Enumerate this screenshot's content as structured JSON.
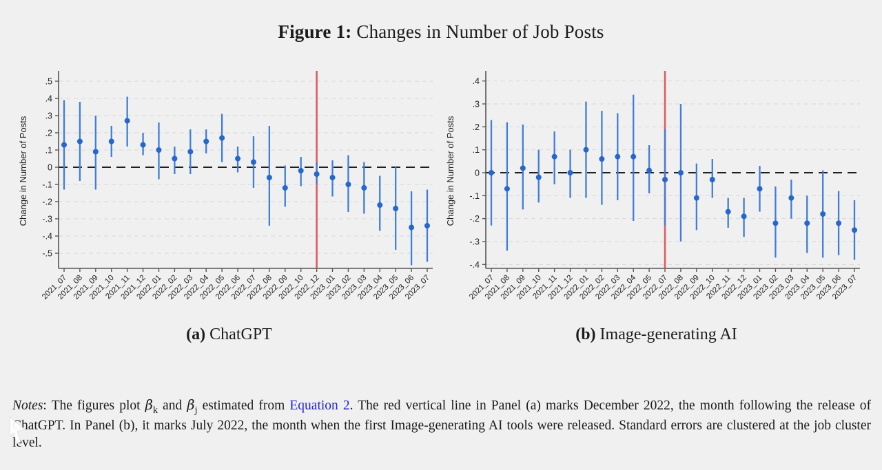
{
  "title": {
    "prefix": "Figure 1:",
    "rest": " Changes in Number of Job Posts"
  },
  "colors": {
    "background": "#f0f0f1",
    "marker": "#2667cb",
    "ci_line": "#3f7ed8",
    "event_line": "#df5b5c",
    "zero_line": "#1f1f1f",
    "grid": "#d9d9d9",
    "axis": "#565656",
    "tick_text": "#222222",
    "link": "#2525cd"
  },
  "chart_data": [
    {
      "type": "scatter",
      "subtype": "coefficient-errorbar",
      "panel": "a",
      "caption_tag": "(a)",
      "caption_label": "ChatGPT",
      "ylabel": "Change in Number of Posts",
      "yticks": [
        ".5",
        ".4",
        ".3",
        ".2",
        ".1",
        "0",
        "-.1",
        "-.2",
        "-.3",
        "-.4",
        "-.5"
      ],
      "ylim": [
        -0.588,
        0.544
      ],
      "zero_line": true,
      "grid": true,
      "event_line_month": "2022_12",
      "event_line_meaning": "December 2022, month following ChatGPT release",
      "categories": [
        "2021_07",
        "2021_08",
        "2021_09",
        "2021_10",
        "2021_11",
        "2021_12",
        "2022_01",
        "2022_02",
        "2022_03",
        "2022_04",
        "2022_05",
        "2022_06",
        "2022_07",
        "2022_08",
        "2022_09",
        "2022_10",
        "2022_12",
        "2023_01",
        "2023_02",
        "2023_03",
        "2023_04",
        "2023_05",
        "2023_06",
        "2023_07"
      ],
      "points": [
        {
          "month": "2021_07",
          "beta": 0.13,
          "lo": -0.13,
          "hi": 0.39
        },
        {
          "month": "2021_08",
          "beta": 0.15,
          "lo": -0.08,
          "hi": 0.38
        },
        {
          "month": "2021_09",
          "beta": 0.09,
          "lo": -0.13,
          "hi": 0.3
        },
        {
          "month": "2021_10",
          "beta": 0.15,
          "lo": 0.06,
          "hi": 0.24
        },
        {
          "month": "2021_11",
          "beta": 0.27,
          "lo": 0.12,
          "hi": 0.41
        },
        {
          "month": "2021_12",
          "beta": 0.13,
          "lo": 0.07,
          "hi": 0.2
        },
        {
          "month": "2022_01",
          "beta": 0.1,
          "lo": -0.07,
          "hi": 0.26
        },
        {
          "month": "2022_02",
          "beta": 0.05,
          "lo": -0.04,
          "hi": 0.12
        },
        {
          "month": "2022_03",
          "beta": 0.09,
          "lo": -0.04,
          "hi": 0.22
        },
        {
          "month": "2022_04",
          "beta": 0.15,
          "lo": 0.08,
          "hi": 0.22
        },
        {
          "month": "2022_05",
          "beta": 0.17,
          "lo": 0.03,
          "hi": 0.31
        },
        {
          "month": "2022_06",
          "beta": 0.05,
          "lo": -0.03,
          "hi": 0.12
        },
        {
          "month": "2022_07",
          "beta": 0.03,
          "lo": -0.12,
          "hi": 0.18
        },
        {
          "month": "2022_08",
          "beta": -0.06,
          "lo": -0.34,
          "hi": 0.24
        },
        {
          "month": "2022_09",
          "beta": -0.12,
          "lo": -0.23,
          "hi": 0.01
        },
        {
          "month": "2022_10",
          "beta": -0.02,
          "lo": -0.11,
          "hi": 0.06
        },
        {
          "month": "2022_12",
          "beta": -0.04,
          "lo": -0.1,
          "hi": 0.03
        },
        {
          "month": "2023_01",
          "beta": -0.06,
          "lo": -0.17,
          "hi": 0.04
        },
        {
          "month": "2023_02",
          "beta": -0.1,
          "lo": -0.26,
          "hi": 0.07
        },
        {
          "month": "2023_03",
          "beta": -0.12,
          "lo": -0.27,
          "hi": 0.03
        },
        {
          "month": "2023_04",
          "beta": -0.22,
          "lo": -0.37,
          "hi": -0.05
        },
        {
          "month": "2023_05",
          "beta": -0.24,
          "lo": -0.48,
          "hi": 0.0
        },
        {
          "month": "2023_06",
          "beta": -0.35,
          "lo": -0.57,
          "hi": -0.14
        },
        {
          "month": "2023_07",
          "beta": -0.34,
          "lo": -0.55,
          "hi": -0.13
        }
      ]
    },
    {
      "type": "scatter",
      "subtype": "coefficient-errorbar",
      "panel": "b",
      "caption_tag": "(b)",
      "caption_label": "Image-generating AI",
      "ylabel": "Change in Number of Posts",
      "yticks": [
        ".4",
        ".3",
        ".2",
        ".1",
        "0",
        "-.1",
        "-.2",
        "-.3",
        "-.4"
      ],
      "ylim": [
        -0.417,
        0.432
      ],
      "zero_line": true,
      "grid": true,
      "event_line_month": "2022_07",
      "event_line_meaning": "July 2022, month first Image-generating AI tools released",
      "categories": [
        "2021_07",
        "2021_08",
        "2021_09",
        "2021_10",
        "2021_11",
        "2021_12",
        "2022_01",
        "2022_02",
        "2022_03",
        "2022_04",
        "2022_05",
        "2022_07",
        "2022_08",
        "2022_09",
        "2022_10",
        "2022_11",
        "2022_12",
        "2023_01",
        "2023_02",
        "2023_03",
        "2023_04",
        "2023_05",
        "2023_06",
        "2023_07"
      ],
      "points": [
        {
          "month": "2021_07",
          "beta": 0.0,
          "lo": -0.23,
          "hi": 0.23
        },
        {
          "month": "2021_08",
          "beta": -0.07,
          "lo": -0.34,
          "hi": 0.22
        },
        {
          "month": "2021_09",
          "beta": 0.02,
          "lo": -0.16,
          "hi": 0.21
        },
        {
          "month": "2021_10",
          "beta": -0.02,
          "lo": -0.13,
          "hi": 0.1
        },
        {
          "month": "2021_11",
          "beta": 0.07,
          "lo": -0.05,
          "hi": 0.18
        },
        {
          "month": "2021_12",
          "beta": 0.0,
          "lo": -0.11,
          "hi": 0.1
        },
        {
          "month": "2022_01",
          "beta": 0.1,
          "lo": -0.11,
          "hi": 0.31
        },
        {
          "month": "2022_02",
          "beta": 0.06,
          "lo": -0.14,
          "hi": 0.27
        },
        {
          "month": "2022_03",
          "beta": 0.07,
          "lo": -0.12,
          "hi": 0.26
        },
        {
          "month": "2022_04",
          "beta": 0.07,
          "lo": -0.21,
          "hi": 0.34
        },
        {
          "month": "2022_05",
          "beta": 0.01,
          "lo": -0.09,
          "hi": 0.12
        },
        {
          "month": "2022_07",
          "beta": -0.03,
          "lo": -0.23,
          "hi": 0.19
        },
        {
          "month": "2022_08",
          "beta": 0.0,
          "lo": -0.3,
          "hi": 0.3
        },
        {
          "month": "2022_09",
          "beta": -0.11,
          "lo": -0.25,
          "hi": 0.04
        },
        {
          "month": "2022_10",
          "beta": -0.03,
          "lo": -0.11,
          "hi": 0.06
        },
        {
          "month": "2022_11",
          "beta": -0.17,
          "lo": -0.24,
          "hi": -0.11
        },
        {
          "month": "2022_12",
          "beta": -0.19,
          "lo": -0.28,
          "hi": -0.11
        },
        {
          "month": "2023_01",
          "beta": -0.07,
          "lo": -0.17,
          "hi": 0.03
        },
        {
          "month": "2023_02",
          "beta": -0.22,
          "lo": -0.37,
          "hi": -0.06
        },
        {
          "month": "2023_03",
          "beta": -0.11,
          "lo": -0.2,
          "hi": -0.03
        },
        {
          "month": "2023_04",
          "beta": -0.22,
          "lo": -0.35,
          "hi": -0.1
        },
        {
          "month": "2023_05",
          "beta": -0.18,
          "lo": -0.37,
          "hi": 0.01
        },
        {
          "month": "2023_06",
          "beta": -0.22,
          "lo": -0.36,
          "hi": -0.08
        },
        {
          "month": "2023_07",
          "beta": -0.25,
          "lo": -0.38,
          "hi": -0.12
        }
      ]
    }
  ],
  "notes": {
    "segments": [
      {
        "text": "Notes",
        "style": "italic"
      },
      {
        "text": ": The figures plot ",
        "style": "plain"
      },
      {
        "text": "β",
        "style": "beta"
      },
      {
        "text": "k",
        "style": "subscript"
      },
      {
        "text": " and ",
        "style": "plain"
      },
      {
        "text": "β",
        "style": "beta"
      },
      {
        "text": "j",
        "style": "subscript"
      },
      {
        "text": " estimated from ",
        "style": "plain"
      },
      {
        "text": "Equation 2",
        "style": "link"
      },
      {
        "text": ". The red vertical line in Panel (a) marks December 2022, the month following the release of ChatGPT. In Panel (b), it marks July 2022, the month when the first Image-generating AI tools were released. Standard errors are clustered at the job cluster level.",
        "style": "plain"
      }
    ]
  }
}
